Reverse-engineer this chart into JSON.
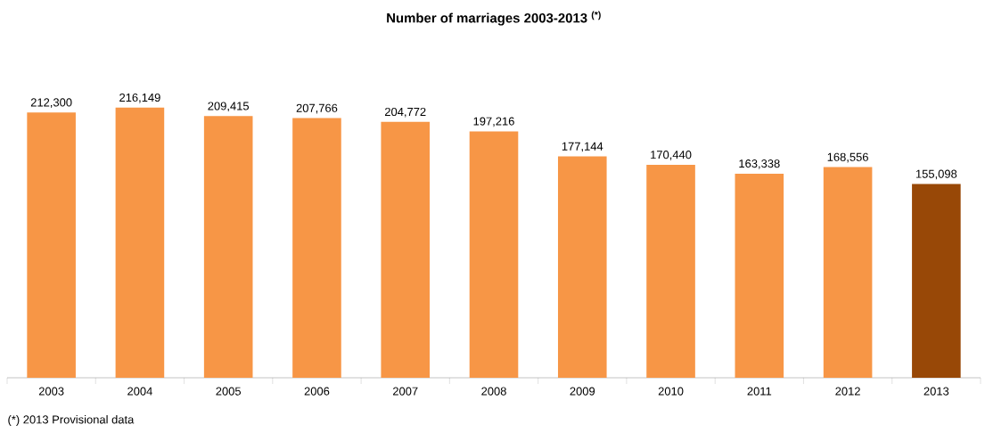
{
  "chart_data": {
    "type": "bar",
    "title": "Number of marriages 2003-2013 $^{(*)}$",
    "categories": [
      "2003",
      "2004",
      "2005",
      "2006",
      "2007",
      "2008",
      "2009",
      "2010",
      "2011",
      "2012",
      "2013"
    ],
    "values": [
      212300,
      216149,
      209415,
      207766,
      204772,
      197216,
      177144,
      170440,
      163338,
      168556,
      155098
    ],
    "value_labels": [
      "212,300",
      "216,149",
      "209,415",
      "207,766",
      "204,772",
      "197,216",
      "177,144",
      "170,440",
      "163,338",
      "168,556",
      "155,098"
    ],
    "colors": [
      "#f79646",
      "#f79646",
      "#f79646",
      "#f79646",
      "#f79646",
      "#f79646",
      "#f79646",
      "#f79646",
      "#f79646",
      "#f79646",
      "#984807"
    ],
    "annotations": [
      "(*) 2013 Provisional data"
    ]
  }
}
